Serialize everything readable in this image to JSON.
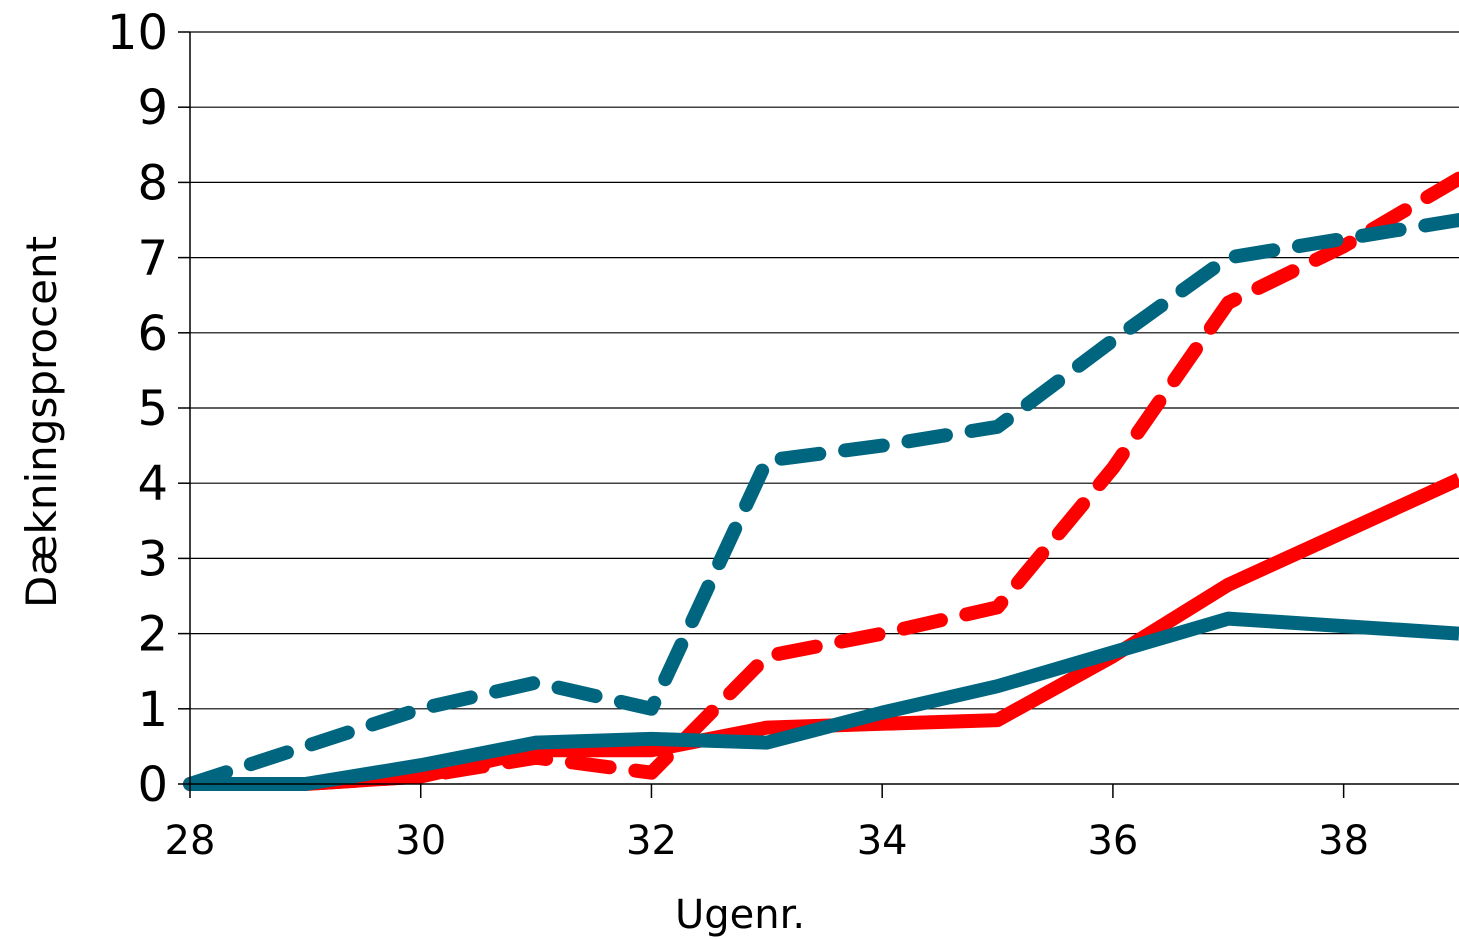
{
  "chart_data": {
    "type": "line",
    "title": "",
    "xlabel": "Ugenr.",
    "ylabel": "Dækningsprocent",
    "xlim": [
      28,
      39
    ],
    "ylim": [
      0,
      10
    ],
    "x_ticks": [
      "28",
      "30",
      "32",
      "34",
      "36",
      "38"
    ],
    "y_ticks": [
      "0",
      "1",
      "2",
      "3",
      "4",
      "5",
      "6",
      "7",
      "8",
      "9",
      "10"
    ],
    "grid": "horizontal",
    "series": [
      {
        "color": "#ff0000",
        "style": "solid",
        "x": [
          28,
          29,
          30,
          31,
          32,
          33,
          34,
          35,
          36,
          37,
          38,
          39
        ],
        "y": [
          0,
          0,
          0.1,
          0.45,
          0.45,
          0.75,
          0.8,
          0.85,
          1.7,
          2.65,
          3.35,
          4.05
        ]
      },
      {
        "color": "#ff0000",
        "style": "dashed",
        "x": [
          28,
          29,
          30,
          31,
          32,
          33,
          34,
          35,
          36,
          37,
          38,
          39
        ],
        "y": [
          0,
          0,
          0.1,
          0.35,
          0.15,
          1.7,
          2.0,
          2.35,
          4.2,
          6.4,
          7.15,
          8.05
        ]
      },
      {
        "color": "#00667f",
        "style": "solid",
        "x": [
          28,
          29,
          30,
          31,
          32,
          33,
          34,
          35,
          36,
          37,
          38,
          39
        ],
        "y": [
          0,
          0,
          0.25,
          0.55,
          0.6,
          0.55,
          0.95,
          1.3,
          1.75,
          2.2,
          2.1,
          2.0
        ]
      },
      {
        "color": "#00667f",
        "style": "dashed",
        "x": [
          28,
          29,
          30,
          31,
          32,
          33,
          34,
          35,
          36,
          37,
          38,
          39
        ],
        "y": [
          0,
          0.5,
          1.0,
          1.35,
          1.0,
          4.3,
          4.5,
          4.75,
          5.9,
          7.0,
          7.25,
          7.5
        ]
      }
    ]
  }
}
